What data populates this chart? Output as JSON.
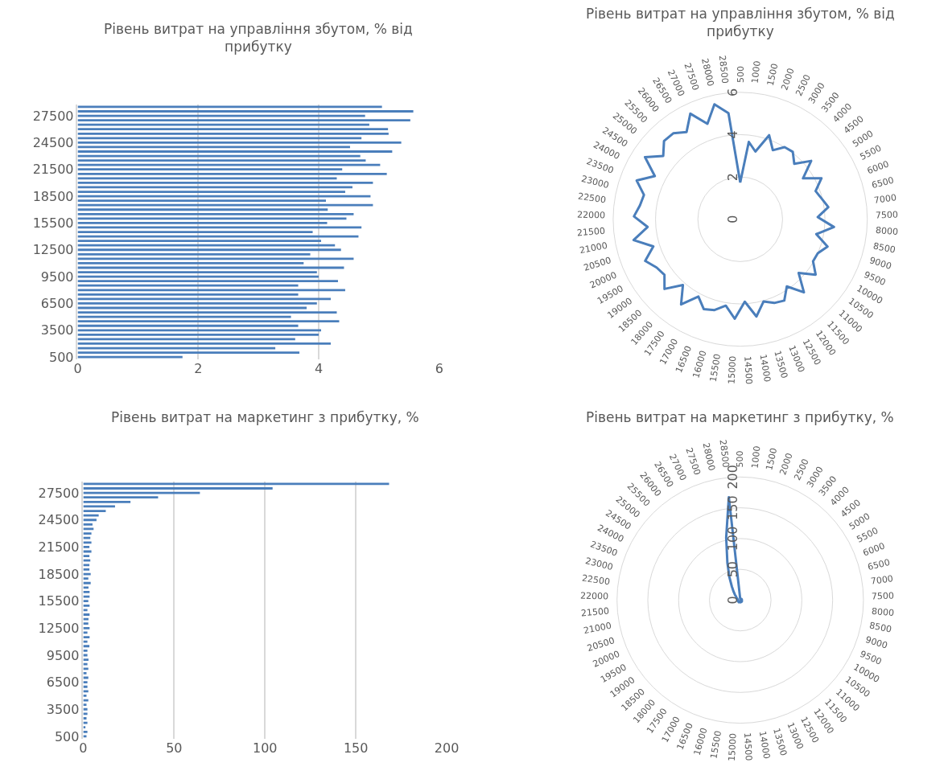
{
  "chart_data": [
    {
      "type": "bar",
      "orientation": "horizontal",
      "title": "Рівень витрат на управління збутом, % від прибутку",
      "categories": [
        null,
        null,
        "27500",
        null,
        null,
        null,
        null,
        null,
        "24500",
        null,
        null,
        null,
        null,
        null,
        "21500",
        null,
        null,
        null,
        null,
        null,
        "18500",
        null,
        null,
        null,
        null,
        null,
        "15500",
        null,
        null,
        null,
        null,
        null,
        "12500",
        null,
        null,
        null,
        null,
        null,
        "9500",
        null,
        null,
        null,
        null,
        null,
        "6500",
        null,
        null,
        null,
        null,
        null,
        "3500",
        null,
        null,
        null,
        null,
        null,
        "500"
      ],
      "values": [
        5.05,
        5.57,
        4.77,
        5.52,
        4.84,
        5.15,
        5.16,
        4.71,
        5.37,
        4.52,
        5.22,
        4.69,
        4.78,
        5.02,
        4.39,
        5.13,
        4.3,
        4.9,
        4.56,
        4.44,
        4.86,
        4.12,
        4.9,
        4.15,
        4.58,
        4.46,
        4.14,
        4.71,
        3.9,
        4.66,
        4.04,
        4.27,
        4.37,
        3.86,
        4.58,
        3.75,
        4.42,
        3.97,
        4.0,
        4.32,
        3.66,
        4.44,
        3.66,
        4.2,
        3.97,
        3.8,
        4.3,
        3.54,
        4.34,
        3.66,
        4.04,
        4.0,
        3.61,
        4.2,
        3.28,
        3.68,
        1.74
      ],
      "color": "#4a7ebb",
      "xlim": [
        0,
        6
      ],
      "xticks": [
        0,
        2,
        4,
        6
      ],
      "grid": "x"
    },
    {
      "type": "radar",
      "title": "Рівень витрат на управління збутом, % від прибутку",
      "categories": [
        "500",
        "1000",
        "1500",
        "2000",
        "2500",
        "3000",
        "3500",
        "4000",
        "4500",
        "5000",
        "5500",
        "6000",
        "6500",
        "7000",
        "7500",
        "8000",
        "8500",
        "9000",
        "9500",
        "10000",
        "10500",
        "11000",
        "11500",
        "12000",
        "12500",
        "13000",
        "13500",
        "14000",
        "14500",
        "15000",
        "15500",
        "16000",
        "16500",
        "17000",
        "17500",
        "18000",
        "18500",
        "19000",
        "19500",
        "20000",
        "20500",
        "21000",
        "21500",
        "22000",
        "22500",
        "23000",
        "23500",
        "24000",
        "24500",
        "25000",
        "25500",
        "26000",
        "26500",
        "27000",
        "27500",
        "28000",
        "28500"
      ],
      "values": [
        1.74,
        3.68,
        3.28,
        4.2,
        3.61,
        4.0,
        4.04,
        3.66,
        4.34,
        3.54,
        4.3,
        3.8,
        3.97,
        4.2,
        3.66,
        4.44,
        3.66,
        4.32,
        4.0,
        3.97,
        4.42,
        3.75,
        4.58,
        3.86,
        4.37,
        4.27,
        4.04,
        4.66,
        3.9,
        4.71,
        4.14,
        4.46,
        4.58,
        4.15,
        4.9,
        4.12,
        4.86,
        4.44,
        4.56,
        4.9,
        4.3,
        5.13,
        4.39,
        5.02,
        4.78,
        4.69,
        5.22,
        4.52,
        5.37,
        4.71,
        5.16,
        5.15,
        4.84,
        5.52,
        4.77,
        5.57,
        5.05
      ],
      "color": "#4a7ebb",
      "ylim": [
        0,
        6
      ],
      "yticks": [
        0,
        2,
        4,
        6
      ],
      "grid": true
    },
    {
      "type": "bar",
      "orientation": "horizontal",
      "title": "Рівень витрат на маркетинг з прибутку, %",
      "categories": [
        null,
        null,
        "27500",
        null,
        null,
        null,
        null,
        null,
        "24500",
        null,
        null,
        null,
        null,
        null,
        "21500",
        null,
        null,
        null,
        null,
        null,
        "18500",
        null,
        null,
        null,
        null,
        null,
        "15500",
        null,
        null,
        null,
        null,
        null,
        "12500",
        null,
        null,
        null,
        null,
        null,
        "9500",
        null,
        null,
        null,
        null,
        null,
        "6500",
        null,
        null,
        null,
        null,
        null,
        "3500",
        null,
        null,
        null,
        null,
        null,
        "500"
      ],
      "values": [
        168.3,
        104.2,
        64.2,
        41.2,
        26.0,
        17.5,
        12.4,
        8.5,
        7.3,
        5.1,
        5.7,
        4.5,
        3.9,
        4.5,
        3.4,
        4.5,
        3.4,
        3.9,
        3.4,
        3.4,
        4.1,
        2.8,
        4.1,
        2.9,
        3.5,
        3.5,
        2.8,
        3.5,
        2.3,
        3.5,
        2.9,
        2.8,
        3.5,
        2.3,
        3.5,
        2.3,
        3.4,
        2.3,
        2.3,
        2.9,
        2.3,
        2.8,
        1.8,
        2.8,
        2.3,
        2.3,
        2.8,
        1.8,
        2.8,
        1.8,
        2.3,
        2.3,
        1.8,
        2.3,
        1.2,
        2.3,
        1.8
      ],
      "color": "#4a7ebb",
      "xlim": [
        0,
        200
      ],
      "xticks": [
        0,
        50,
        100,
        150,
        200
      ],
      "grid": "x"
    },
    {
      "type": "radar",
      "title": "Рівень витрат на маркетинг з прибутку, %",
      "categories": [
        "500",
        "1000",
        "1500",
        "2000",
        "2500",
        "3000",
        "3500",
        "4000",
        "4500",
        "5000",
        "5500",
        "6000",
        "6500",
        "7000",
        "7500",
        "8000",
        "8500",
        "9000",
        "9500",
        "10000",
        "10500",
        "11000",
        "11500",
        "12000",
        "12500",
        "13000",
        "13500",
        "14000",
        "14500",
        "15000",
        "15500",
        "16000",
        "16500",
        "17000",
        "17500",
        "18000",
        "18500",
        "19000",
        "19500",
        "20000",
        "20500",
        "21000",
        "21500",
        "22000",
        "22500",
        "23000",
        "23500",
        "24000",
        "24500",
        "25000",
        "25500",
        "26000",
        "26500",
        "27000",
        "27500",
        "28000",
        "28500"
      ],
      "values": [
        1.8,
        2.3,
        1.2,
        2.3,
        1.8,
        2.3,
        2.3,
        1.8,
        2.8,
        1.8,
        2.8,
        2.3,
        2.3,
        2.8,
        1.8,
        2.8,
        2.3,
        2.9,
        2.3,
        2.3,
        3.4,
        2.3,
        3.5,
        2.3,
        3.5,
        2.8,
        2.9,
        3.5,
        2.3,
        3.5,
        2.8,
        3.5,
        3.5,
        2.9,
        4.1,
        2.8,
        4.1,
        3.4,
        3.4,
        3.9,
        3.4,
        4.5,
        3.4,
        4.5,
        3.9,
        4.5,
        5.7,
        5.1,
        7.3,
        8.5,
        12.4,
        17.5,
        26.0,
        41.2,
        64.2,
        104.2,
        168.3
      ],
      "color": "#4a7ebb",
      "ylim": [
        0,
        200
      ],
      "yticks": [
        0,
        50,
        100,
        150,
        200
      ],
      "grid": true
    }
  ]
}
